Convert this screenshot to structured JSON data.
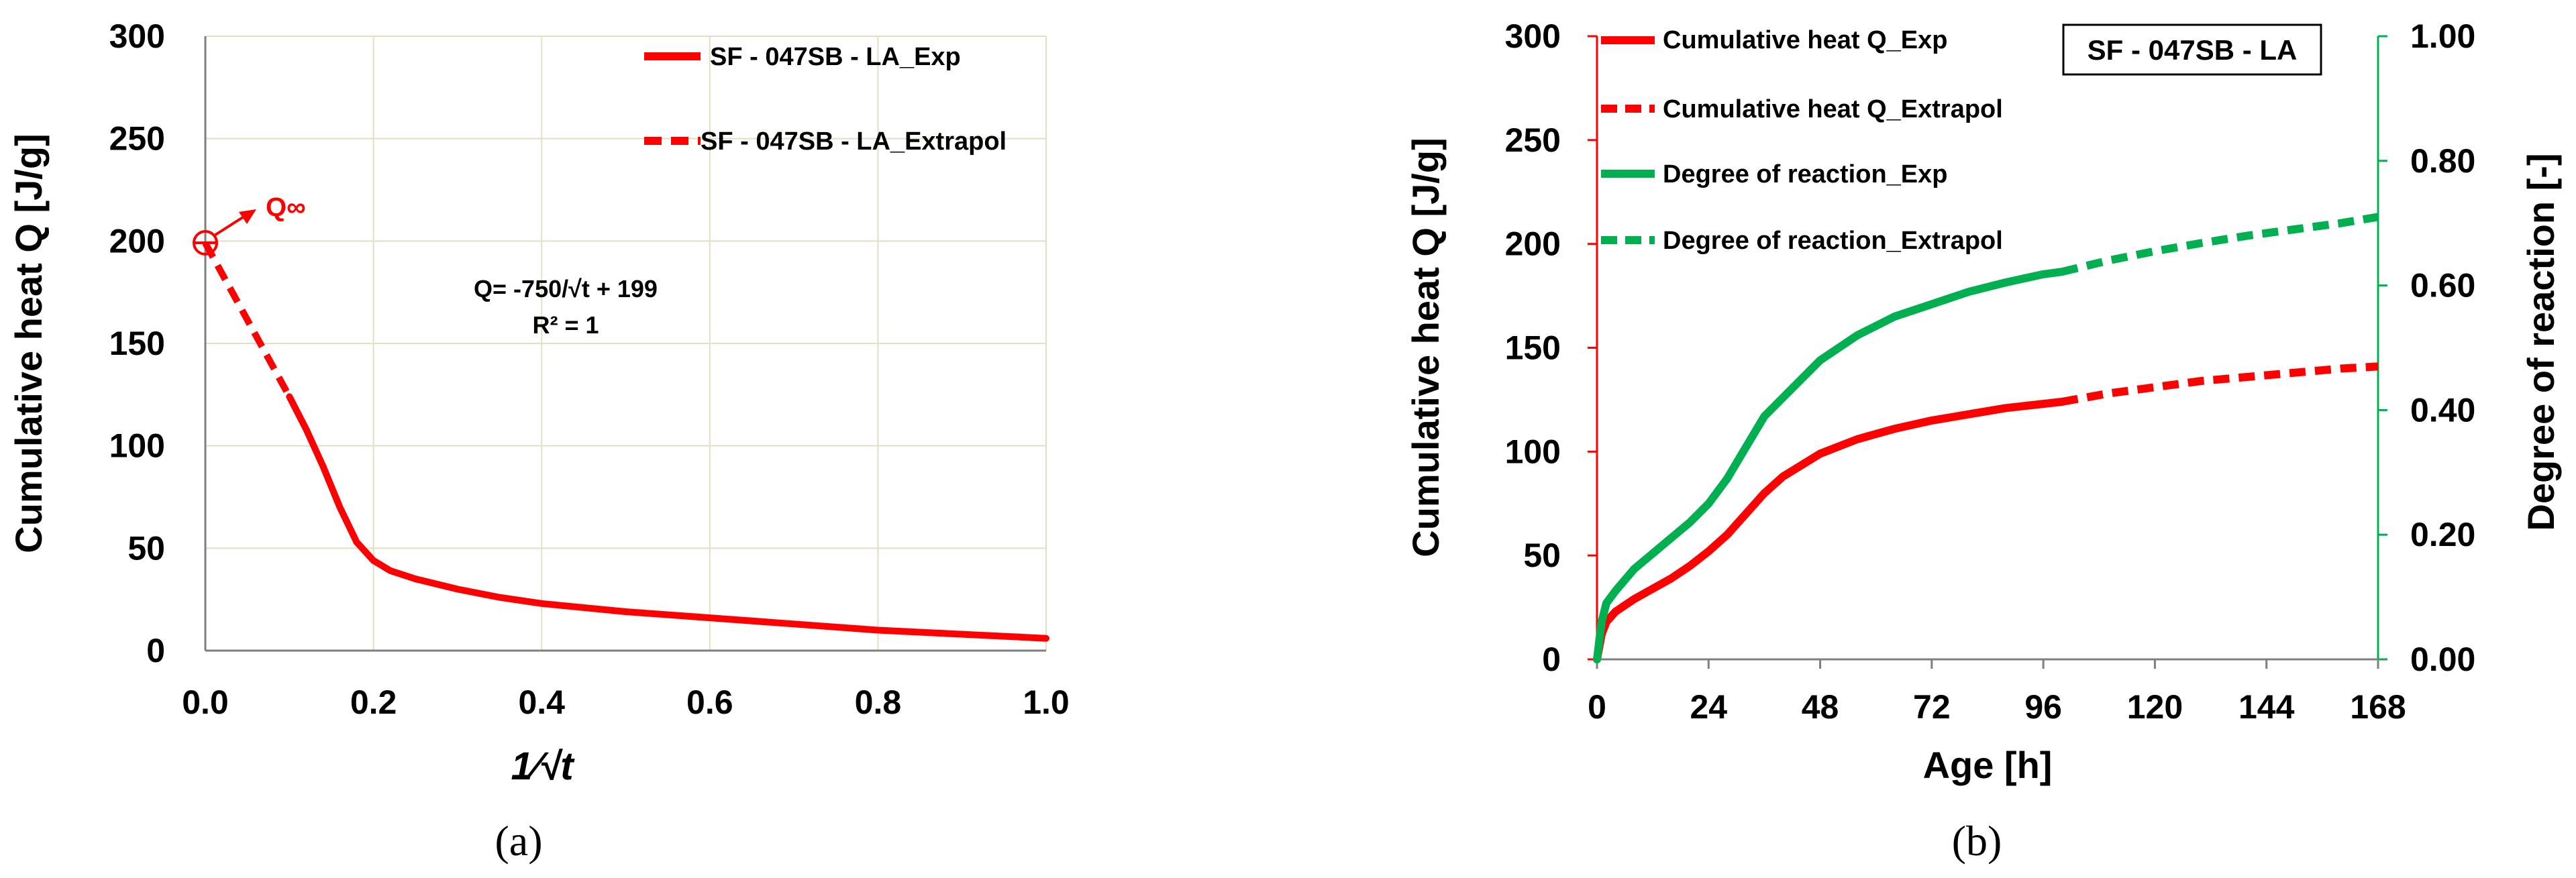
{
  "chart_data": [
    {
      "panel": "(a)",
      "type": "line",
      "ylabel": "Cumulative heat Q [J/g]",
      "xlabel": "1⁄√t",
      "xlim": [
        0.0,
        1.0
      ],
      "ylim": [
        0,
        300
      ],
      "xticks": [
        "0.0",
        "0.2",
        "0.4",
        "0.6",
        "0.8",
        "1.0"
      ],
      "yticks": [
        "0",
        "50",
        "100",
        "150",
        "200",
        "250",
        "300"
      ],
      "grid": true,
      "legend_position": "top-right",
      "series": [
        {
          "name": "SF - 047SB - LA_Exp",
          "style": "solid",
          "color": "#ff0000",
          "x": [
            0.1,
            0.12,
            0.14,
            0.16,
            0.18,
            0.2,
            0.22,
            0.25,
            0.3,
            0.35,
            0.4,
            0.5,
            0.6,
            0.7,
            0.8,
            0.9,
            1.0
          ],
          "y": [
            124,
            108,
            90,
            70,
            53,
            44,
            39,
            35,
            30,
            26,
            23,
            19,
            16,
            13,
            10,
            8,
            6
          ]
        },
        {
          "name": "SF - 047SB - LA_Extrapol",
          "style": "dashed",
          "color": "#ff0000",
          "x": [
            0.0,
            0.1
          ],
          "y": [
            199,
            124
          ]
        }
      ],
      "annotations": {
        "q_infinity": "Q∞",
        "equation": "Q= -750/√t + 199",
        "r_squared": "R² = 1"
      }
    },
    {
      "panel": "(b)",
      "type": "line",
      "title_box": "SF - 047SB - LA",
      "ylabel": "Cumulative heat Q [J/g]",
      "y2label": "Degree of reaction [-]",
      "xlabel": "Age [h]",
      "xlim": [
        0,
        168
      ],
      "ylim": [
        0,
        300
      ],
      "y2lim": [
        0.0,
        1.0
      ],
      "xticks": [
        "0",
        "24",
        "48",
        "72",
        "96",
        "120",
        "144",
        "168"
      ],
      "yticks": [
        "0",
        "50",
        "100",
        "150",
        "200",
        "250",
        "300"
      ],
      "y2ticks": [
        "0.00",
        "0.20",
        "0.40",
        "0.60",
        "0.80",
        "1.00"
      ],
      "grid": false,
      "legend_position": "top-left",
      "series": [
        {
          "name": "Cumulative heat Q_Exp",
          "style": "solid",
          "color": "#ff0000",
          "axis": "left",
          "x": [
            0,
            1,
            2,
            4,
            8,
            12,
            16,
            20,
            24,
            28,
            32,
            36,
            40,
            48,
            56,
            64,
            72,
            80,
            88,
            96,
            100
          ],
          "y": [
            0,
            12,
            18,
            23,
            29,
            34,
            39,
            45,
            52,
            60,
            70,
            80,
            88,
            99,
            106,
            111,
            115,
            118,
            121,
            123,
            124
          ]
        },
        {
          "name": "Cumulative heat Q_Extrapol",
          "style": "dashed",
          "color": "#ff0000",
          "axis": "left",
          "x": [
            100,
            110,
            120,
            130,
            140,
            150,
            160,
            168
          ],
          "y": [
            124,
            128,
            131,
            134,
            136,
            138,
            140,
            141
          ]
        },
        {
          "name": "Degree of reaction_Exp",
          "style": "solid",
          "color": "#00b050",
          "axis": "right",
          "x": [
            0,
            1,
            2,
            4,
            8,
            12,
            16,
            20,
            24,
            28,
            32,
            36,
            40,
            48,
            56,
            64,
            72,
            80,
            88,
            96,
            100
          ],
          "y": [
            0,
            0.06,
            0.09,
            0.11,
            0.145,
            0.17,
            0.195,
            0.22,
            0.25,
            0.29,
            0.34,
            0.39,
            0.42,
            0.48,
            0.52,
            0.55,
            0.57,
            0.59,
            0.605,
            0.618,
            0.622
          ]
        },
        {
          "name": "Degree of reaction_Extrapol",
          "style": "dashed",
          "color": "#00b050",
          "axis": "right",
          "x": [
            100,
            110,
            120,
            130,
            140,
            150,
            160,
            168
          ],
          "y": [
            0.622,
            0.64,
            0.655,
            0.668,
            0.68,
            0.69,
            0.7,
            0.71
          ]
        }
      ]
    }
  ]
}
